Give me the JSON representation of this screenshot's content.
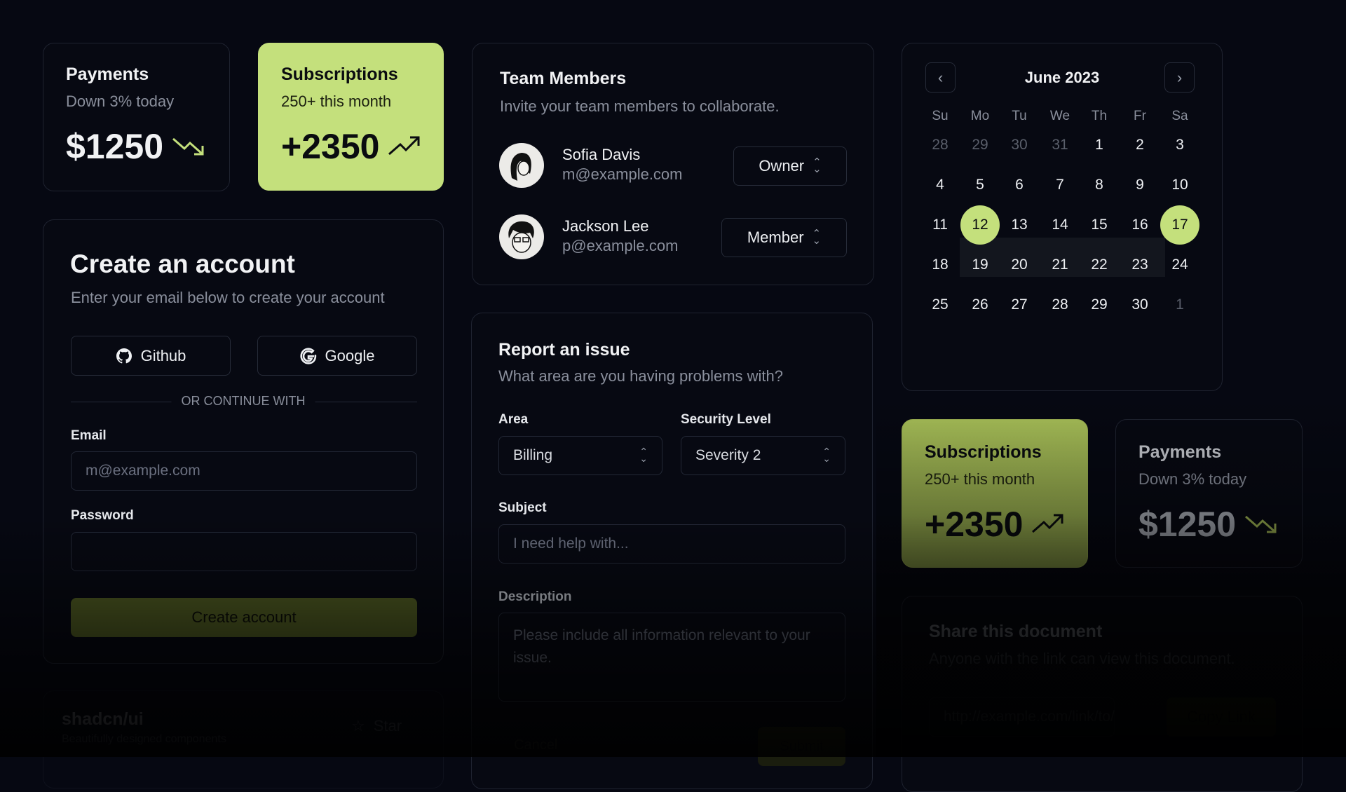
{
  "stats": [
    {
      "title": "Payments",
      "subtitle": "Down 3% today",
      "value": "$1250",
      "trend": "trending-down-icon"
    },
    {
      "title": "Subscriptions",
      "subtitle": "250+ this month",
      "value": "+2350",
      "trend": "trending-up-icon"
    }
  ],
  "create_account": {
    "title": "Create an account",
    "subtitle": "Enter your email below to create your account",
    "github_label": "Github",
    "google_label": "Google",
    "divider": "OR CONTINUE WITH",
    "email_label": "Email",
    "email_placeholder": "m@example.com",
    "password_label": "Password",
    "submit_label": "Create account"
  },
  "repo": {
    "name": "shadcn/ui",
    "description": "Beautifully designed components",
    "star_label": "Star"
  },
  "team": {
    "title": "Team Members",
    "subtitle": "Invite your team members to collaborate.",
    "members": [
      {
        "name": "Sofia Davis",
        "email": "m@example.com",
        "role": "Owner"
      },
      {
        "name": "Jackson Lee",
        "email": "p@example.com",
        "role": "Member"
      }
    ]
  },
  "report": {
    "title": "Report an issue",
    "subtitle": "What area are you having problems with?",
    "area_label": "Area",
    "area_value": "Billing",
    "security_label": "Security Level",
    "security_value": "Severity 2",
    "subject_label": "Subject",
    "subject_placeholder": "I need help with...",
    "description_label": "Description",
    "description_placeholder": "Please include all information relevant to your issue.",
    "cancel_label": "Cancel",
    "submit_label": "Submit"
  },
  "calendar": {
    "month": "June 2023",
    "weekdays": [
      "Su",
      "Mo",
      "Tu",
      "We",
      "Th",
      "Fr",
      "Sa"
    ],
    "weeks": [
      [
        "28",
        "29",
        "30",
        "31",
        "1",
        "2",
        "3"
      ],
      [
        "4",
        "5",
        "6",
        "7",
        "8",
        "9",
        "10"
      ],
      [
        "11",
        "12",
        "13",
        "14",
        "15",
        "16",
        "17"
      ],
      [
        "18",
        "19",
        "20",
        "21",
        "22",
        "23",
        "24"
      ],
      [
        "25",
        "26",
        "27",
        "28",
        "29",
        "30",
        "1"
      ]
    ],
    "range_start": "12",
    "range_end": "17"
  },
  "share": {
    "title": "Share this document",
    "subtitle": "Anyone with the link can view this document.",
    "link": "http://example.com/link/to/",
    "copy_label": "Copy Link"
  },
  "colors": {
    "accent": "#c4e07c",
    "background": "#060812",
    "border": "#1f2330"
  }
}
